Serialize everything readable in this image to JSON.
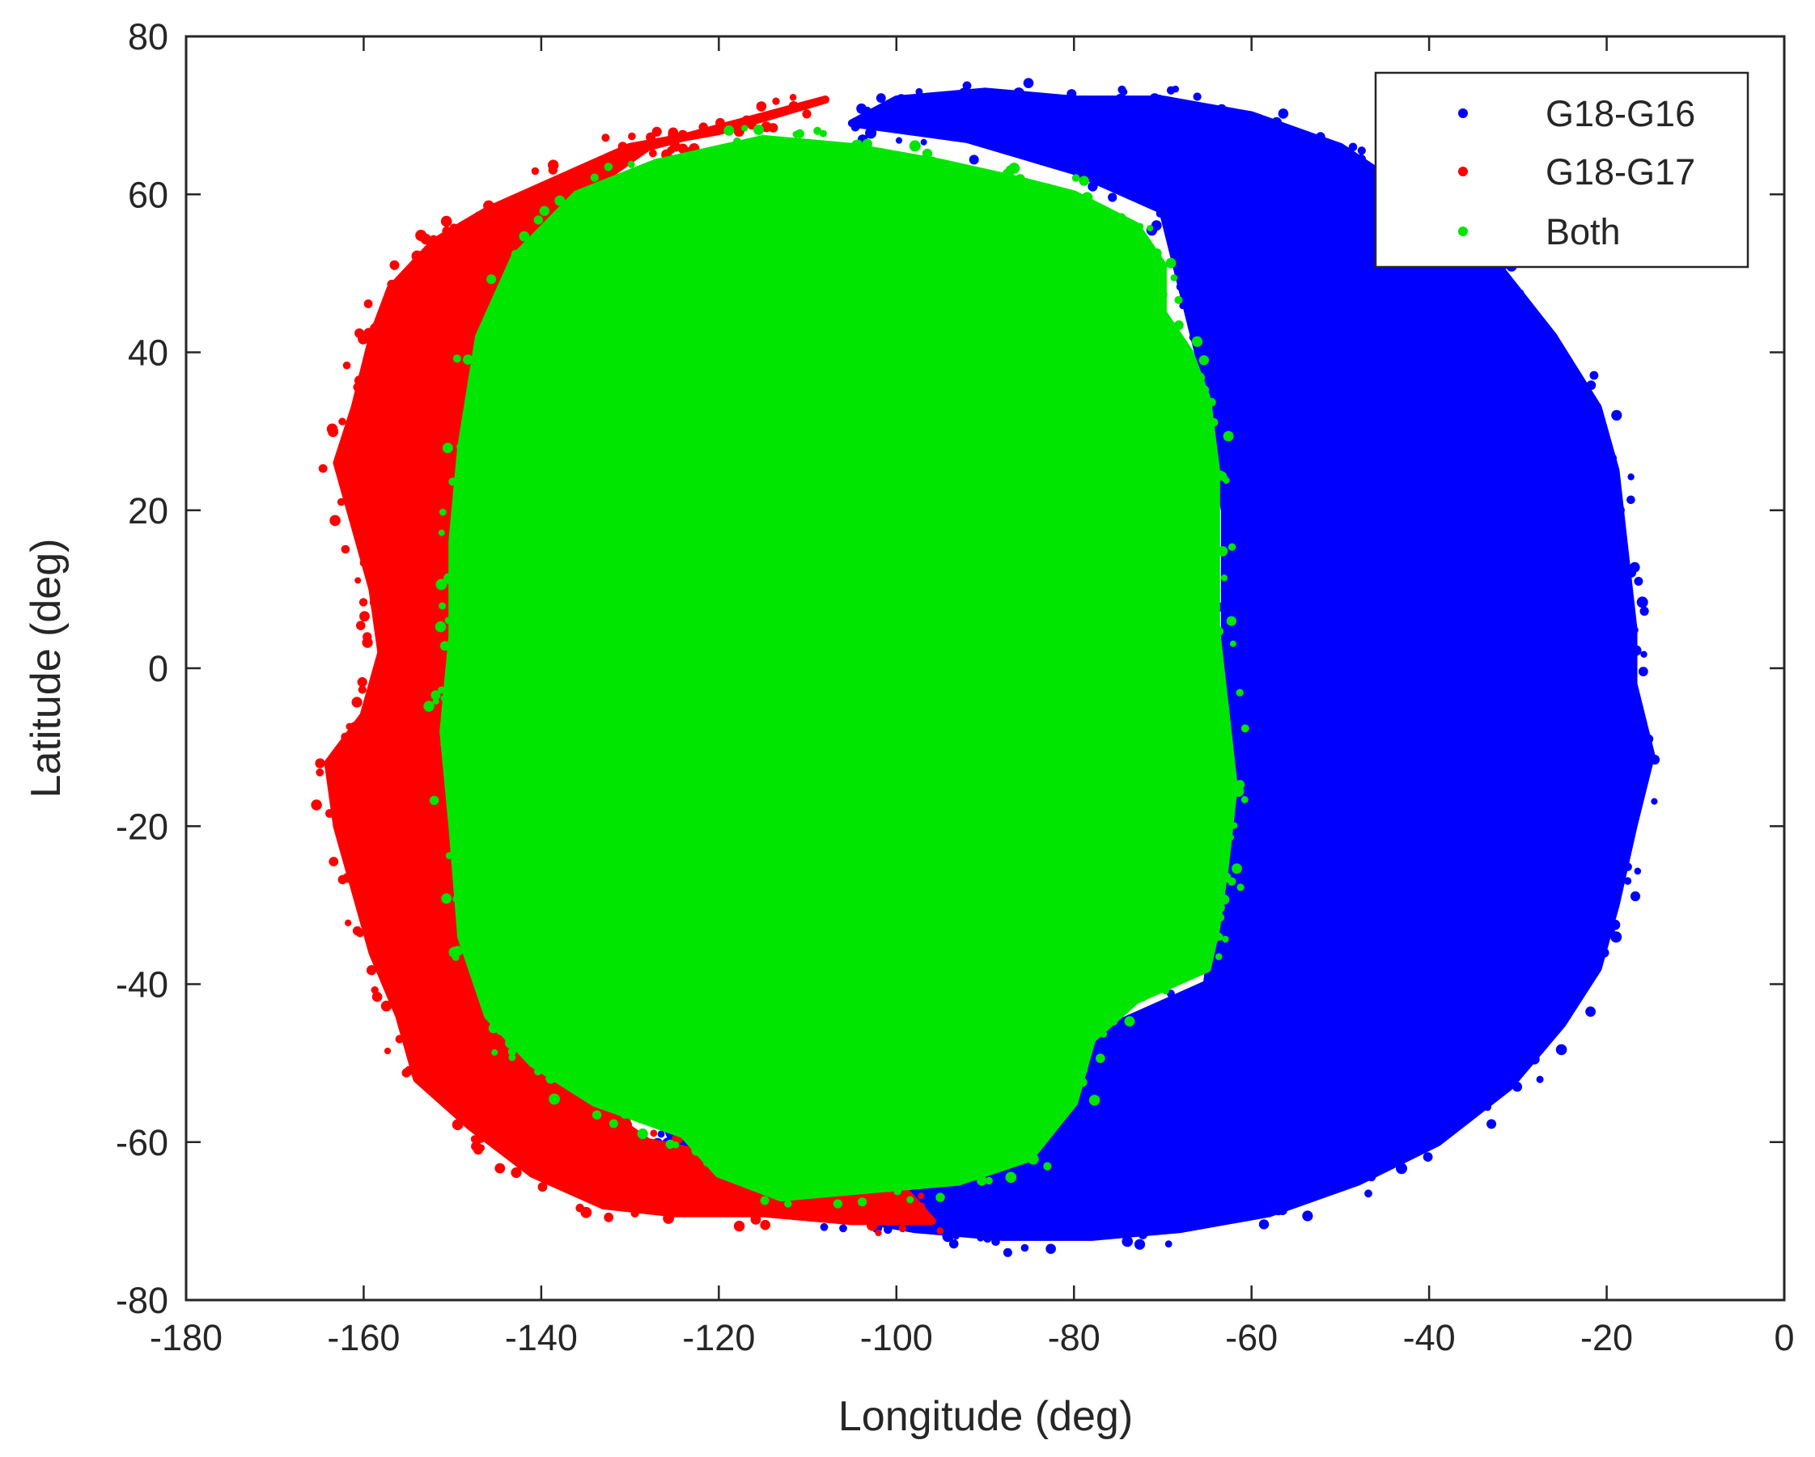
{
  "chart_data": {
    "type": "scatter",
    "title": "",
    "xlabel": "Longitude (deg)",
    "ylabel": "Latitude (deg)",
    "xlim": [
      -180,
      0
    ],
    "ylim": [
      -80,
      80
    ],
    "xticks": [
      -180,
      -160,
      -140,
      -120,
      -100,
      -80,
      -60,
      -40,
      -20,
      0
    ],
    "yticks": [
      -80,
      -60,
      -40,
      -20,
      0,
      20,
      40,
      60,
      80
    ],
    "xtick_labels": [
      "-180",
      "-160",
      "-140",
      "-120",
      "-100",
      "-80",
      "-60",
      "-40",
      "-20",
      "0"
    ],
    "ytick_labels": [
      "-80",
      "-60",
      "-40",
      "-20",
      "0",
      "20",
      "40",
      "60",
      "80"
    ],
    "grid": false,
    "legend_position": "top-right",
    "series": [
      {
        "name": "G18-G16",
        "color": "#0000ff",
        "extent": {
          "lon_range": [
            -127,
            -15
          ],
          "lat_range": [
            -72,
            73
          ]
        },
        "outline": [
          [
            -100,
            72
          ],
          [
            -90,
            73
          ],
          [
            -80,
            72
          ],
          [
            -70,
            72
          ],
          [
            -60,
            70
          ],
          [
            -50,
            66
          ],
          [
            -42,
            60
          ],
          [
            -33,
            52
          ],
          [
            -26,
            42
          ],
          [
            -21,
            33
          ],
          [
            -19,
            25
          ],
          [
            -18,
            15
          ],
          [
            -17,
            5
          ],
          [
            -17,
            -2
          ],
          [
            -15,
            -11
          ],
          [
            -17,
            -20
          ],
          [
            -19,
            -30
          ],
          [
            -21,
            -38
          ],
          [
            -25,
            -45
          ],
          [
            -31,
            -53
          ],
          [
            -39,
            -60
          ],
          [
            -48,
            -65
          ],
          [
            -58,
            -69
          ],
          [
            -68,
            -71
          ],
          [
            -78,
            -72
          ],
          [
            -88,
            -72
          ],
          [
            -98,
            -71
          ],
          [
            -108,
            -69
          ],
          [
            -117,
            -67
          ],
          [
            -124,
            -63
          ],
          [
            -127,
            -55
          ],
          [
            -115,
            -50
          ],
          [
            -100,
            -55
          ],
          [
            -85,
            -50
          ],
          [
            -75,
            -45
          ],
          [
            -65,
            -40
          ],
          [
            -63,
            -20
          ],
          [
            -63,
            0
          ],
          [
            -63,
            20
          ],
          [
            -66,
            40
          ],
          [
            -70,
            58
          ],
          [
            -80,
            63
          ],
          [
            -92,
            67
          ],
          [
            -105,
            69
          ]
        ]
      },
      {
        "name": "G18-G17",
        "color": "#ff0000",
        "extent": {
          "lon_range": [
            -164,
            -95
          ],
          "lat_range": [
            -70,
            72
          ]
        },
        "outline": [
          [
            -108,
            72
          ],
          [
            -120,
            68
          ],
          [
            -130,
            66
          ],
          [
            -138,
            62
          ],
          [
            -146,
            58
          ],
          [
            -152,
            54
          ],
          [
            -157,
            48
          ],
          [
            -159,
            42
          ],
          [
            -161,
            33
          ],
          [
            -163,
            26
          ],
          [
            -161,
            18
          ],
          [
            -159,
            10
          ],
          [
            -158,
            2
          ],
          [
            -160,
            -6
          ],
          [
            -164,
            -12
          ],
          [
            -163,
            -20
          ],
          [
            -161,
            -28
          ],
          [
            -159,
            -36
          ],
          [
            -156,
            -44
          ],
          [
            -154,
            -52
          ],
          [
            -148,
            -58
          ],
          [
            -141,
            -64
          ],
          [
            -133,
            -68
          ],
          [
            -125,
            -69
          ],
          [
            -115,
            -69
          ],
          [
            -105,
            -70
          ],
          [
            -96,
            -70
          ],
          [
            -100,
            -65
          ],
          [
            -115,
            -63
          ],
          [
            -128,
            -60
          ],
          [
            -138,
            -52
          ],
          [
            -146,
            -46
          ],
          [
            -150,
            -30
          ],
          [
            -151,
            -10
          ],
          [
            -150,
            10
          ],
          [
            -148,
            30
          ],
          [
            -144,
            48
          ],
          [
            -138,
            58
          ],
          [
            -128,
            66
          ],
          [
            -118,
            69
          ]
        ]
      },
      {
        "name": "Both",
        "color": "#00e600",
        "extent": {
          "lon_range": [
            -151,
            -63
          ],
          "lat_range": [
            -67,
            67
          ]
        },
        "outline": [
          [
            -115,
            67
          ],
          [
            -105,
            66
          ],
          [
            -95,
            64
          ],
          [
            -87,
            62
          ],
          [
            -80,
            60
          ],
          [
            -73,
            56
          ],
          [
            -70,
            51
          ],
          [
            -70,
            45
          ],
          [
            -67,
            40
          ],
          [
            -65,
            34
          ],
          [
            -64,
            25
          ],
          [
            -64,
            15
          ],
          [
            -64,
            5
          ],
          [
            -63,
            -5
          ],
          [
            -62,
            -15
          ],
          [
            -63,
            -25
          ],
          [
            -64,
            -33
          ],
          [
            -65,
            -38
          ],
          [
            -73,
            -42
          ],
          [
            -78,
            -47
          ],
          [
            -80,
            -55
          ],
          [
            -85,
            -62
          ],
          [
            -93,
            -65
          ],
          [
            -103,
            -66
          ],
          [
            -113,
            -67
          ],
          [
            -120,
            -64
          ],
          [
            -124,
            -59
          ],
          [
            -134,
            -55
          ],
          [
            -141,
            -50
          ],
          [
            -146,
            -44
          ],
          [
            -149,
            -34
          ],
          [
            -150,
            -20
          ],
          [
            -151,
            -8
          ],
          [
            -150,
            4
          ],
          [
            -150,
            16
          ],
          [
            -149,
            28
          ],
          [
            -147,
            42
          ],
          [
            -143,
            52
          ],
          [
            -136,
            60
          ],
          [
            -127,
            64
          ]
        ]
      }
    ]
  }
}
